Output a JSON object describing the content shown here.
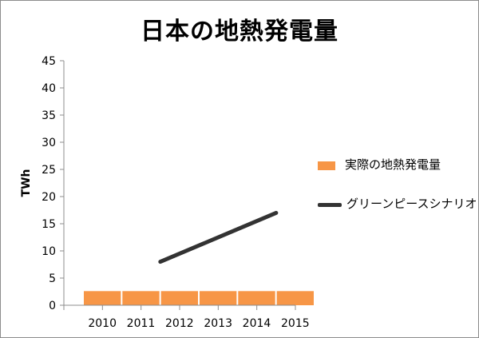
{
  "chart_data": {
    "type": "bar",
    "title": "日本の地熱発電量",
    "xlabel": "",
    "ylabel": "TWh",
    "categories": [
      "2010",
      "2011",
      "2012",
      "2013",
      "2014",
      "2015"
    ],
    "ylim": [
      0,
      45
    ],
    "yticks": [
      0,
      5,
      10,
      15,
      20,
      25,
      30,
      35,
      40,
      45
    ],
    "grid": false,
    "legend_position": "right",
    "series": [
      {
        "name": "実際の地熱発電量",
        "type": "bar",
        "color": "#f79646",
        "values": [
          2.6,
          2.6,
          2.6,
          2.6,
          2.6,
          2.6
        ]
      },
      {
        "name": "グリーンピースシナリオ",
        "type": "line",
        "color": "#333333",
        "values": [
          null,
          null,
          8,
          11,
          14,
          17
        ]
      }
    ]
  }
}
